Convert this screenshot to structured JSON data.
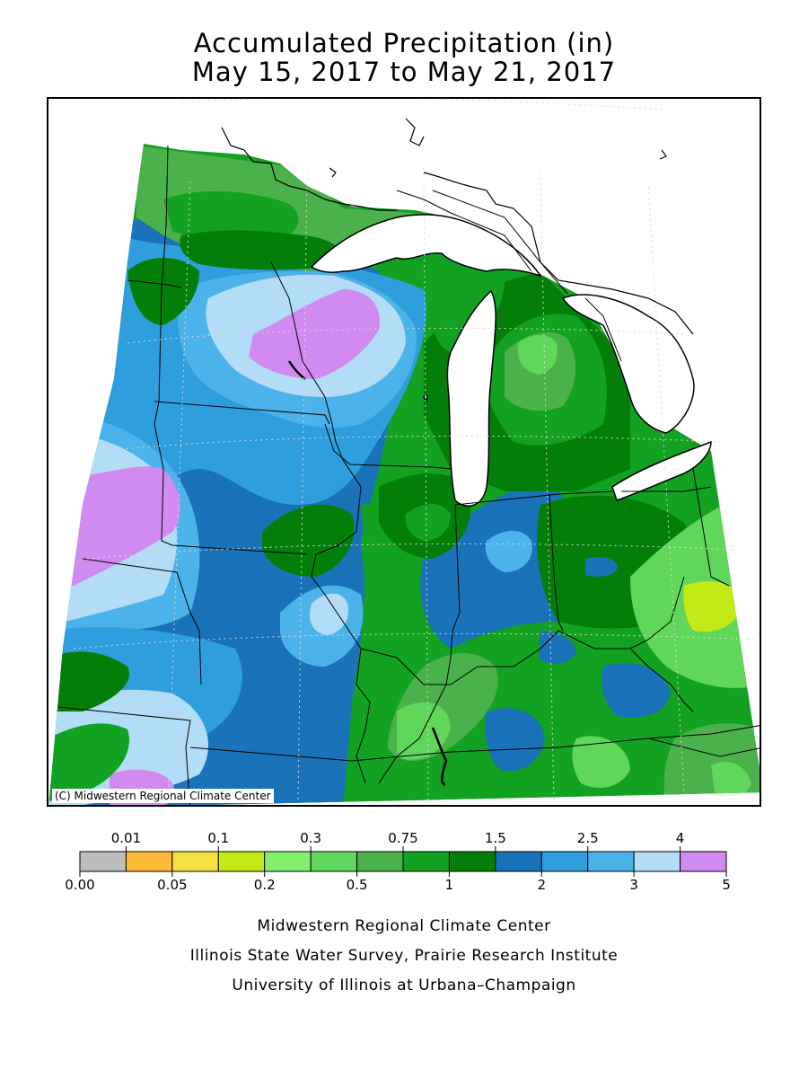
{
  "title_line1": "Accumulated Precipitation (in)",
  "title_line2": "May 15, 2017 to May 21, 2017",
  "copyright": "(C) Midwestern Regional Climate Center",
  "legend": {
    "upper_labels": [
      "0.01",
      "0.1",
      "0.3",
      "0.75",
      "1.5",
      "2.5",
      "4"
    ],
    "lower_labels": [
      "0.00",
      "0.05",
      "0.2",
      "0.5",
      "1",
      "2",
      "3",
      "5"
    ],
    "colors": [
      "#bdbdbd",
      "#ffba35",
      "#f5e142",
      "#c3ea17",
      "#82f06e",
      "#60d65b",
      "#4bb14b",
      "#13a122",
      "#037f09",
      "#1a72b8",
      "#2f9edd",
      "#4bb2ea",
      "#b3dcf7",
      "#d18af0"
    ]
  },
  "footer": {
    "line1": "Midwestern Regional Climate Center",
    "line2": "Illinois State Water Survey, Prairie Research Institute",
    "line3": "University of Illinois at Urbana–Champaign"
  },
  "map": {
    "region": "Midwest",
    "lake_color": "#ffffff",
    "border_color": "#000000"
  }
}
